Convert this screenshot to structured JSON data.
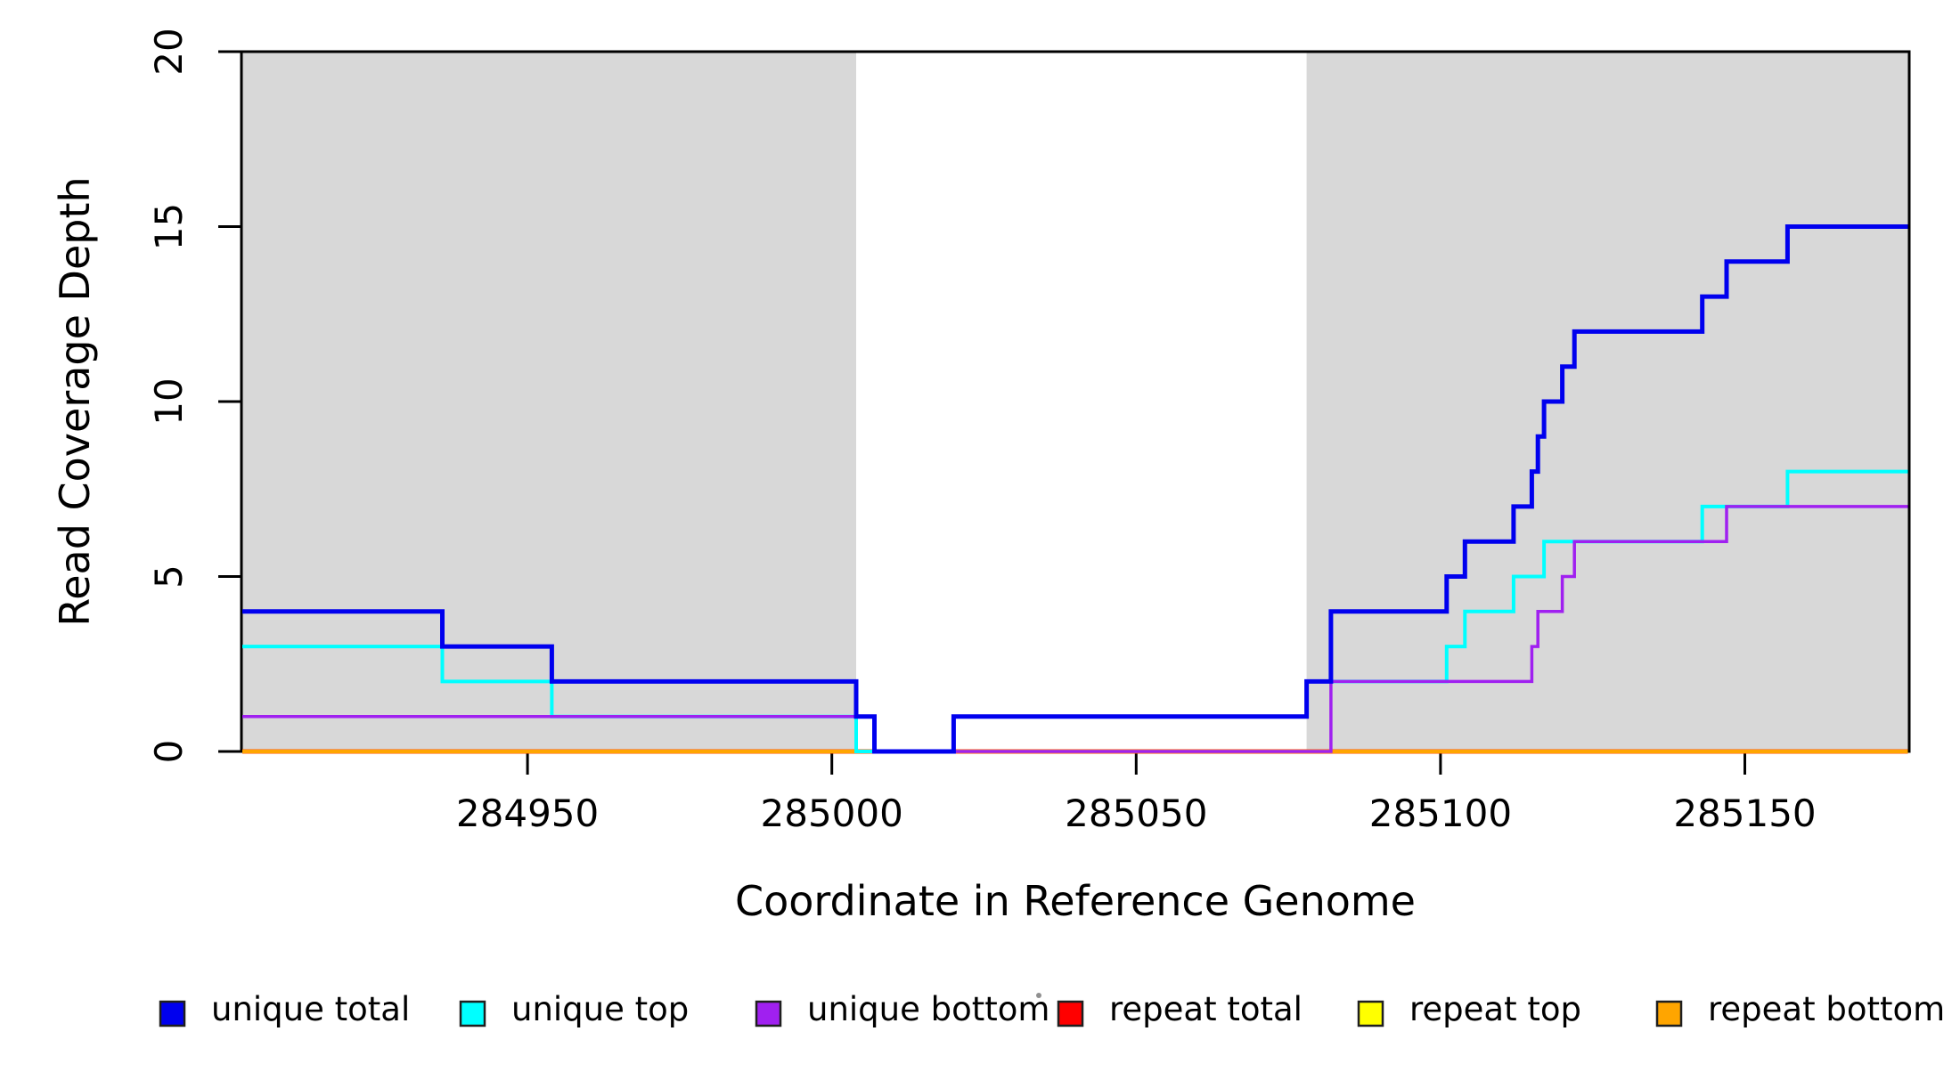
{
  "chart_data": {
    "type": "line",
    "subtype": "step",
    "title": "",
    "xlabel": "Coordinate in Reference Genome",
    "ylabel": "Read Coverage Depth",
    "xlim": [
      284903,
      285177
    ],
    "ylim": [
      0,
      20
    ],
    "x_ticks": [
      284950,
      285000,
      285050,
      285100,
      285150
    ],
    "y_ticks": [
      0,
      5,
      10,
      15,
      20
    ],
    "grid": false,
    "background_color": "#ffffff",
    "box_color": "#000000",
    "shaded_region_color": "#d8d8d8",
    "shaded_regions": [
      {
        "name": "masked-region-left",
        "x0": 284903,
        "x1": 285004
      },
      {
        "name": "masked-region-right",
        "x0": 285078,
        "x1": 285177
      }
    ],
    "series": [
      {
        "name": "repeat total",
        "color": "#ff0000",
        "line_width": 5,
        "steps": [
          [
            284903,
            0
          ]
        ],
        "x_end": 285177
      },
      {
        "name": "repeat top",
        "color": "#ffff00",
        "line_width": 4,
        "steps": [
          [
            284903,
            0
          ]
        ],
        "x_end": 285177
      },
      {
        "name": "repeat bottom",
        "color": "#ffa500",
        "line_width": 4.5,
        "steps": [
          [
            284903,
            0
          ]
        ],
        "x_end": 285177
      },
      {
        "name": "unique top",
        "color": "#00ffff",
        "line_width": 4,
        "steps": [
          [
            284903,
            3
          ],
          [
            284936,
            2
          ],
          [
            284954,
            1
          ],
          [
            285004,
            0
          ],
          [
            285020,
            1
          ],
          [
            285078,
            2
          ],
          [
            285101,
            3
          ],
          [
            285104,
            4
          ],
          [
            285112,
            5
          ],
          [
            285117,
            6
          ],
          [
            285143,
            7
          ],
          [
            285157,
            8
          ]
        ],
        "x_end": 285177
      },
      {
        "name": "unique bottom",
        "color": "#a020f0",
        "line_width": 3.5,
        "steps": [
          [
            284903,
            1
          ],
          [
            285007,
            0
          ],
          [
            285082,
            2
          ],
          [
            285115,
            3
          ],
          [
            285116,
            4
          ],
          [
            285120,
            5
          ],
          [
            285122,
            6
          ],
          [
            285147,
            7
          ]
        ],
        "x_end": 285177
      },
      {
        "name": "unique total",
        "color": "#0000ee",
        "line_width": 5,
        "steps": [
          [
            284903,
            4
          ],
          [
            284936,
            3
          ],
          [
            284954,
            2
          ],
          [
            285004,
            1
          ],
          [
            285007,
            0
          ],
          [
            285020,
            1
          ],
          [
            285078,
            2
          ],
          [
            285082,
            4
          ],
          [
            285101,
            5
          ],
          [
            285104,
            6
          ],
          [
            285112,
            7
          ],
          [
            285115,
            8
          ],
          [
            285116,
            9
          ],
          [
            285117,
            10
          ],
          [
            285120,
            11
          ],
          [
            285122,
            12
          ],
          [
            285143,
            13
          ],
          [
            285147,
            14
          ],
          [
            285157,
            15
          ]
        ],
        "x_end": 285177
      }
    ],
    "legend": {
      "position": "bottom",
      "items": [
        {
          "label": "unique total",
          "color": "#0000ee"
        },
        {
          "label": "unique top",
          "color": "#00ffff"
        },
        {
          "label": "unique bottom",
          "color": "#a020f0"
        },
        {
          "label": "repeat total",
          "color": "#ff0000"
        },
        {
          "label": "repeat top",
          "color": "#ffff00"
        },
        {
          "label": "repeat bottom",
          "color": "#ffa500"
        }
      ]
    }
  }
}
